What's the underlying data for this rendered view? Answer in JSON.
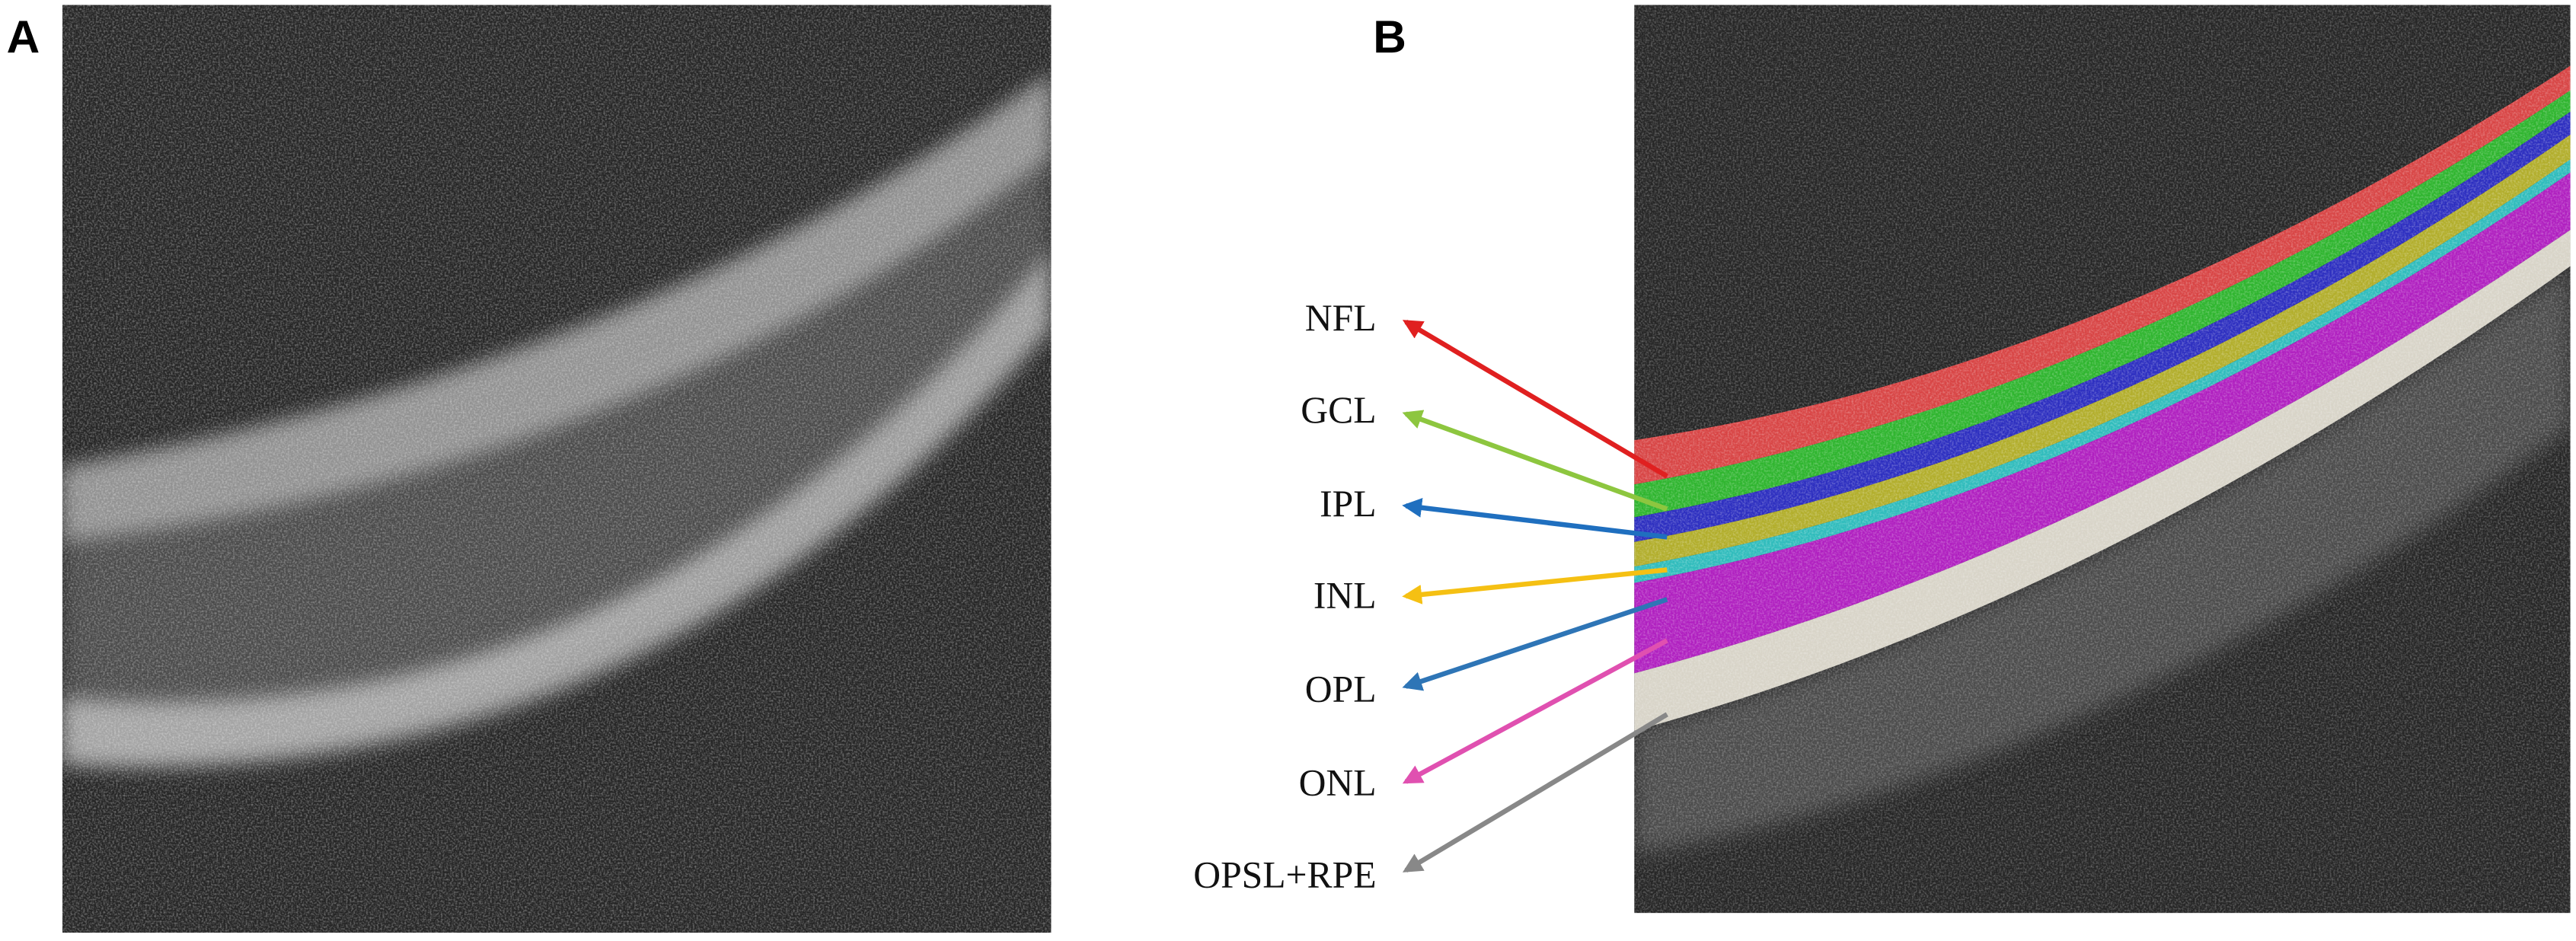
{
  "panels": [
    {
      "label": "A"
    },
    {
      "label": "B",
      "layers": [
        "NFL",
        "GCL",
        "IPL",
        "INL",
        "OPL",
        "ONL",
        "OPSL+RPE"
      ]
    }
  ]
}
